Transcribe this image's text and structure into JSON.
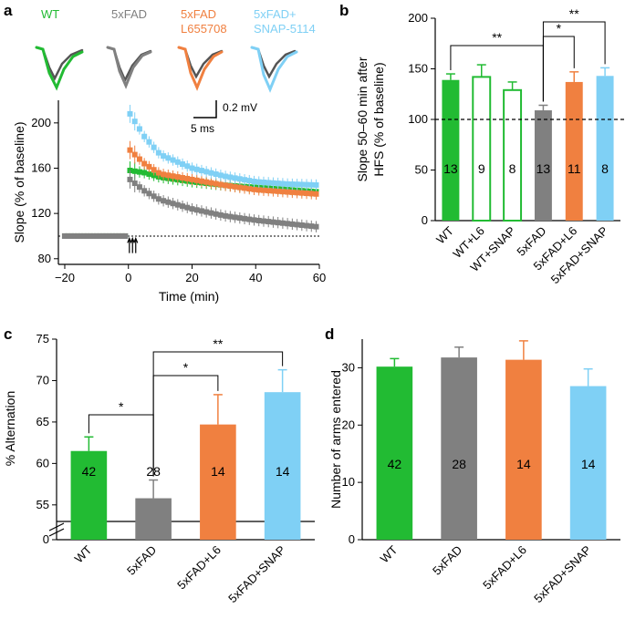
{
  "panel_labels": {
    "a": "a",
    "b": "b",
    "c": "c",
    "d": "d"
  },
  "colors": {
    "WT": "#22bb33",
    "5xFAD": "#808080",
    "L6": "#f08040",
    "SNAP": "#7fd0f5",
    "axis": "#000000"
  },
  "trace_labels": [
    {
      "lines": [
        "WT"
      ],
      "color": "#22bb33"
    },
    {
      "lines": [
        "5xFAD"
      ],
      "color": "#808080"
    },
    {
      "lines": [
        "5xFAD",
        "L655708"
      ],
      "color": "#f08040"
    },
    {
      "lines": [
        "5xFAD+",
        "SNAP-5114"
      ],
      "color": "#7fd0f5"
    }
  ],
  "scalebar": {
    "amplitude": "0.2 mV",
    "time": "5 ms"
  },
  "chart_data": [
    {
      "panel": "a",
      "type": "scatter",
      "xlabel": "Time (min)",
      "ylabel": "Slope (% of baseline)",
      "xlim": [
        -22,
        60
      ],
      "ylim": [
        75,
        220
      ],
      "xticks": [
        -20,
        0,
        20,
        40,
        60
      ],
      "yticks": [
        80,
        120,
        160,
        200
      ],
      "xtick_labels": [
        "−20",
        "0",
        "20",
        "40",
        "60"
      ],
      "ytick_labels": [
        "80",
        "120",
        "160",
        "200"
      ],
      "reference_line": 100,
      "series": [
        {
          "name": "WT",
          "color": "#22bb33",
          "points": [
            [
              -20,
              100
            ],
            [
              -10,
              100
            ],
            [
              0,
              100
            ],
            [
              0.5,
              158
            ],
            [
              5,
              156
            ],
            [
              10,
              152
            ],
            [
              20,
              148
            ],
            [
              30,
              145
            ],
            [
              40,
              143
            ],
            [
              50,
              141
            ],
            [
              60,
              139
            ]
          ]
        },
        {
          "name": "5xFAD L655708",
          "color": "#f08040",
          "points": [
            [
              -20,
              100
            ],
            [
              -10,
              100
            ],
            [
              0,
              100
            ],
            [
              0.5,
              176
            ],
            [
              5,
              164
            ],
            [
              10,
              155
            ],
            [
              20,
              150
            ],
            [
              30,
              145
            ],
            [
              40,
              141
            ],
            [
              50,
              139
            ],
            [
              60,
              137
            ]
          ]
        },
        {
          "name": "5xFAD+SNAP-5114",
          "color": "#7fd0f5",
          "points": [
            [
              -20,
              100
            ],
            [
              -10,
              100
            ],
            [
              0,
              100
            ],
            [
              0.5,
              208
            ],
            [
              5,
              188
            ],
            [
              10,
              172
            ],
            [
              20,
              160
            ],
            [
              30,
              153
            ],
            [
              40,
              148
            ],
            [
              50,
              146
            ],
            [
              60,
              145
            ]
          ]
        },
        {
          "name": "5xFAD",
          "color": "#808080",
          "points": [
            [
              -20,
              100
            ],
            [
              -10,
              100
            ],
            [
              0,
              100
            ],
            [
              0.5,
              150
            ],
            [
              5,
              140
            ],
            [
              10,
              132
            ],
            [
              20,
              124
            ],
            [
              30,
              118
            ],
            [
              40,
              114
            ],
            [
              50,
              111
            ],
            [
              60,
              108
            ]
          ]
        }
      ]
    },
    {
      "panel": "b",
      "type": "bar",
      "ylabel_lines": [
        "Slope 50–60 min after",
        "HFS (% of baseline)"
      ],
      "categories": [
        "WT",
        "WT+L6",
        "WT+SNAP",
        "5xFAD",
        "5xFAD+L6",
        "5xFAD+SNAP"
      ],
      "values": [
        139,
        142,
        129,
        109,
        137,
        143
      ],
      "errors": [
        6,
        12,
        8,
        5,
        10,
        8
      ],
      "n": [
        "13",
        "9",
        "8",
        "13",
        "11",
        "8"
      ],
      "filled": [
        true,
        false,
        false,
        true,
        true,
        true
      ],
      "colors": [
        "#22bb33",
        "#22bb33",
        "#22bb33",
        "#808080",
        "#f08040",
        "#7fd0f5"
      ],
      "ylim": [
        0,
        200
      ],
      "yticks": [
        0,
        50,
        100,
        150,
        200
      ],
      "reference_line": 100,
      "significance": [
        {
          "from": 0,
          "to": 3,
          "label": "**"
        },
        {
          "from": 3,
          "to": 4,
          "label": "*"
        },
        {
          "from": 3,
          "to": 5,
          "label": "**"
        }
      ]
    },
    {
      "panel": "c",
      "type": "bar",
      "ylabel": "% Alternation",
      "categories": [
        "WT",
        "5xFAD",
        "5xFAD+L6",
        "5xFAD+SNAP"
      ],
      "values": [
        61.5,
        55.8,
        64.7,
        68.6
      ],
      "errors": [
        1.7,
        2.2,
        3.6,
        2.7
      ],
      "n": [
        "42",
        "28",
        "14",
        "14"
      ],
      "colors": [
        "#22bb33",
        "#808080",
        "#f08040",
        "#7fd0f5"
      ],
      "ylim": [
        53,
        75
      ],
      "yticks": [
        0,
        55,
        60,
        65,
        70,
        75
      ],
      "axis_break": true,
      "significance": [
        {
          "from": 0,
          "to": 1,
          "label": "*"
        },
        {
          "from": 1,
          "to": 2,
          "label": "*"
        },
        {
          "from": 1,
          "to": 3,
          "label": "**"
        }
      ]
    },
    {
      "panel": "d",
      "type": "bar",
      "ylabel": "Number of arms entered",
      "categories": [
        "WT",
        "5xFAD",
        "5xFAD+L6",
        "5xFAD+SNAP"
      ],
      "values": [
        30.2,
        31.8,
        31.4,
        26.8
      ],
      "errors": [
        1.4,
        1.8,
        3.3,
        3.0
      ],
      "n": [
        "42",
        "28",
        "14",
        "14"
      ],
      "colors": [
        "#22bb33",
        "#808080",
        "#f08040",
        "#7fd0f5"
      ],
      "ylim": [
        0,
        35
      ],
      "yticks": [
        0,
        10,
        20,
        30
      ]
    }
  ]
}
